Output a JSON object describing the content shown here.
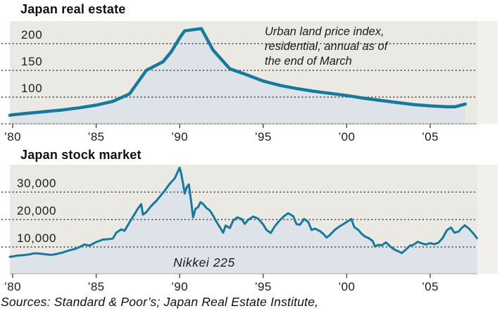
{
  "page": {
    "background": "#ffffff"
  },
  "colors": {
    "line": "#17799b",
    "area_fill": "#dde3e9",
    "plot_background": "#ebe9e3",
    "plot_background_right_strip": "#f2f0ea",
    "gridline": "#3e3e3e",
    "axis_border": "#a8a59f",
    "tick": "#555555",
    "text": "#1a1a1a"
  },
  "footer": {
    "sources": "Sources: Standard & Poor’s; Japan Real Estate Institute,"
  },
  "chart_data": [
    {
      "id": "japan-real-estate",
      "type": "area",
      "title": "Japan real estate",
      "annotation": "Urban land price index,\nresidential, annual as of\nthe end of March",
      "grid": "dotted-horizontal",
      "legend": "none",
      "x_axis": {
        "range": [
          1979.8,
          2008.3
        ],
        "tick_years": [
          1980,
          1985,
          1990,
          1995,
          2000,
          2005
        ],
        "tick_labels": [
          "’80",
          "’85",
          "’90",
          "’95",
          "’00",
          "’05"
        ]
      },
      "y_axis": {
        "range": [
          50,
          240
        ],
        "tick_values": [
          200,
          150,
          100
        ],
        "tick_labels": [
          "200",
          "150",
          "100"
        ],
        "gridline_values": [
          200,
          150,
          100,
          50
        ]
      },
      "series": [
        {
          "name": "Urban land price index (residential)",
          "points": [
            [
              1979.83,
              66
            ],
            [
              1980,
              67
            ],
            [
              1981,
              70
            ],
            [
              1982,
              73
            ],
            [
              1983,
              76
            ],
            [
              1984,
              80
            ],
            [
              1985,
              85
            ],
            [
              1986,
              92
            ],
            [
              1987,
              106
            ],
            [
              1988,
              150
            ],
            [
              1989,
              166
            ],
            [
              1989.5,
              185
            ],
            [
              1990.05,
              213
            ],
            [
              1990.3,
              224
            ],
            [
              1990.8,
              226
            ],
            [
              1991.3,
              228
            ],
            [
              1992,
              188
            ],
            [
              1993,
              153
            ],
            [
              1994,
              142
            ],
            [
              1995,
              130
            ],
            [
              1996,
              122
            ],
            [
              1997,
              116
            ],
            [
              1998,
              111
            ],
            [
              1999,
              107
            ],
            [
              2000,
              103
            ],
            [
              2001,
              98
            ],
            [
              2002,
              94
            ],
            [
              2003,
              90
            ],
            [
              2004,
              86
            ],
            [
              2005,
              83.5
            ],
            [
              2006,
              82
            ],
            [
              2006.5,
              82
            ],
            [
              2007.1,
              87
            ]
          ]
        }
      ]
    },
    {
      "id": "japan-stock-market",
      "type": "area",
      "title": "Japan stock market",
      "annotation": "Nikkei 225",
      "grid": "dotted-horizontal",
      "legend": "none",
      "x_axis": {
        "range": [
          1979.8,
          2008.3
        ],
        "tick_years": [
          1980,
          1985,
          1990,
          1995,
          2000,
          2005
        ],
        "tick_labels": [
          "’80",
          "’85",
          "’90",
          "’95",
          "’00",
          "’05"
        ]
      },
      "y_axis": {
        "range": [
          0,
          40000
        ],
        "tick_values": [
          30000,
          20000,
          10000
        ],
        "tick_labels": [
          "30,000",
          "20,000",
          "10,000"
        ],
        "gridline_values": [
          30000,
          20000,
          10000
        ]
      },
      "series": [
        {
          "name": "Nikkei 225",
          "points": [
            [
              1979.83,
              6400
            ],
            [
              1980,
              6550
            ],
            [
              1980.3,
              6900
            ],
            [
              1980.6,
              7000
            ],
            [
              1981,
              7300
            ],
            [
              1981.3,
              7700
            ],
            [
              1981.6,
              7600
            ],
            [
              1982,
              7300
            ],
            [
              1982.3,
              7100
            ],
            [
              1982.6,
              7400
            ],
            [
              1983,
              8000
            ],
            [
              1983.4,
              8800
            ],
            [
              1983.8,
              9400
            ],
            [
              1984,
              10000
            ],
            [
              1984.3,
              10900
            ],
            [
              1984.6,
              10500
            ],
            [
              1985,
              11800
            ],
            [
              1985.4,
              12700
            ],
            [
              1985.8,
              12900
            ],
            [
              1986,
              13100
            ],
            [
              1986.2,
              15200
            ],
            [
              1986.5,
              16400
            ],
            [
              1986.7,
              15900
            ],
            [
              1987,
              19000
            ],
            [
              1987.3,
              22000
            ],
            [
              1987.5,
              24000
            ],
            [
              1987.7,
              25600
            ],
            [
              1987.8,
              21800
            ],
            [
              1988,
              22700
            ],
            [
              1988.3,
              25000
            ],
            [
              1988.6,
              26800
            ],
            [
              1988.9,
              29000
            ],
            [
              1989.1,
              30500
            ],
            [
              1989.4,
              33000
            ],
            [
              1989.7,
              35000
            ],
            [
              1990,
              38900
            ],
            [
              1990.1,
              36500
            ],
            [
              1990.2,
              33200
            ],
            [
              1990.3,
              29500
            ],
            [
              1990.42,
              31800
            ],
            [
              1990.55,
              32800
            ],
            [
              1990.7,
              26000
            ],
            [
              1990.8,
              20800
            ],
            [
              1990.95,
              23900
            ],
            [
              1991.1,
              24500
            ],
            [
              1991.25,
              26300
            ],
            [
              1991.4,
              25700
            ],
            [
              1991.6,
              24200
            ],
            [
              1991.8,
              23300
            ],
            [
              1992,
              21500
            ],
            [
              1992.2,
              19200
            ],
            [
              1992.45,
              16800
            ],
            [
              1992.6,
              15200
            ],
            [
              1992.75,
              17800
            ],
            [
              1993,
              16900
            ],
            [
              1993.2,
              19600
            ],
            [
              1993.45,
              20800
            ],
            [
              1993.7,
              20200
            ],
            [
              1993.9,
              18400
            ],
            [
              1994.1,
              19900
            ],
            [
              1994.4,
              21100
            ],
            [
              1994.7,
              20300
            ],
            [
              1995,
              18200
            ],
            [
              1995.2,
              16200
            ],
            [
              1995.45,
              15100
            ],
            [
              1995.7,
              17600
            ],
            [
              1996,
              19800
            ],
            [
              1996.3,
              21500
            ],
            [
              1996.5,
              22300
            ],
            [
              1996.8,
              21200
            ],
            [
              1997,
              18300
            ],
            [
              1997.2,
              18100
            ],
            [
              1997.45,
              20200
            ],
            [
              1997.7,
              19100
            ],
            [
              1997.9,
              16200
            ],
            [
              1998.1,
              16700
            ],
            [
              1998.4,
              15800
            ],
            [
              1998.6,
              14800
            ],
            [
              1998.8,
              13400
            ],
            [
              1999,
              14400
            ],
            [
              1999.3,
              16300
            ],
            [
              1999.6,
              17600
            ],
            [
              1999.9,
              18700
            ],
            [
              2000.1,
              19500
            ],
            [
              2000.28,
              20200
            ],
            [
              2000.45,
              17300
            ],
            [
              2000.7,
              16200
            ],
            [
              2000.9,
              14800
            ],
            [
              2001.1,
              13800
            ],
            [
              2001.3,
              13300
            ],
            [
              2001.55,
              12200
            ],
            [
              2001.7,
              10200
            ],
            [
              2001.9,
              10800
            ],
            [
              2002.1,
              10600
            ],
            [
              2002.35,
              11700
            ],
            [
              2002.6,
              10200
            ],
            [
              2002.85,
              9100
            ],
            [
              2003.1,
              8400
            ],
            [
              2003.3,
              7800
            ],
            [
              2003.55,
              9100
            ],
            [
              2003.8,
              10500
            ],
            [
              2004,
              10800
            ],
            [
              2004.25,
              11900
            ],
            [
              2004.5,
              11300
            ],
            [
              2004.75,
              10900
            ],
            [
              2005,
              11400
            ],
            [
              2005.25,
              11000
            ],
            [
              2005.5,
              11600
            ],
            [
              2005.75,
              13300
            ],
            [
              2006,
              16100
            ],
            [
              2006.25,
              17100
            ],
            [
              2006.45,
              15200
            ],
            [
              2006.7,
              15600
            ],
            [
              2006.9,
              17000
            ],
            [
              2007.07,
              17900
            ],
            [
              2007.3,
              16800
            ],
            [
              2007.5,
              15500
            ],
            [
              2007.65,
              14400
            ],
            [
              2007.8,
              13200
            ]
          ]
        }
      ]
    }
  ]
}
